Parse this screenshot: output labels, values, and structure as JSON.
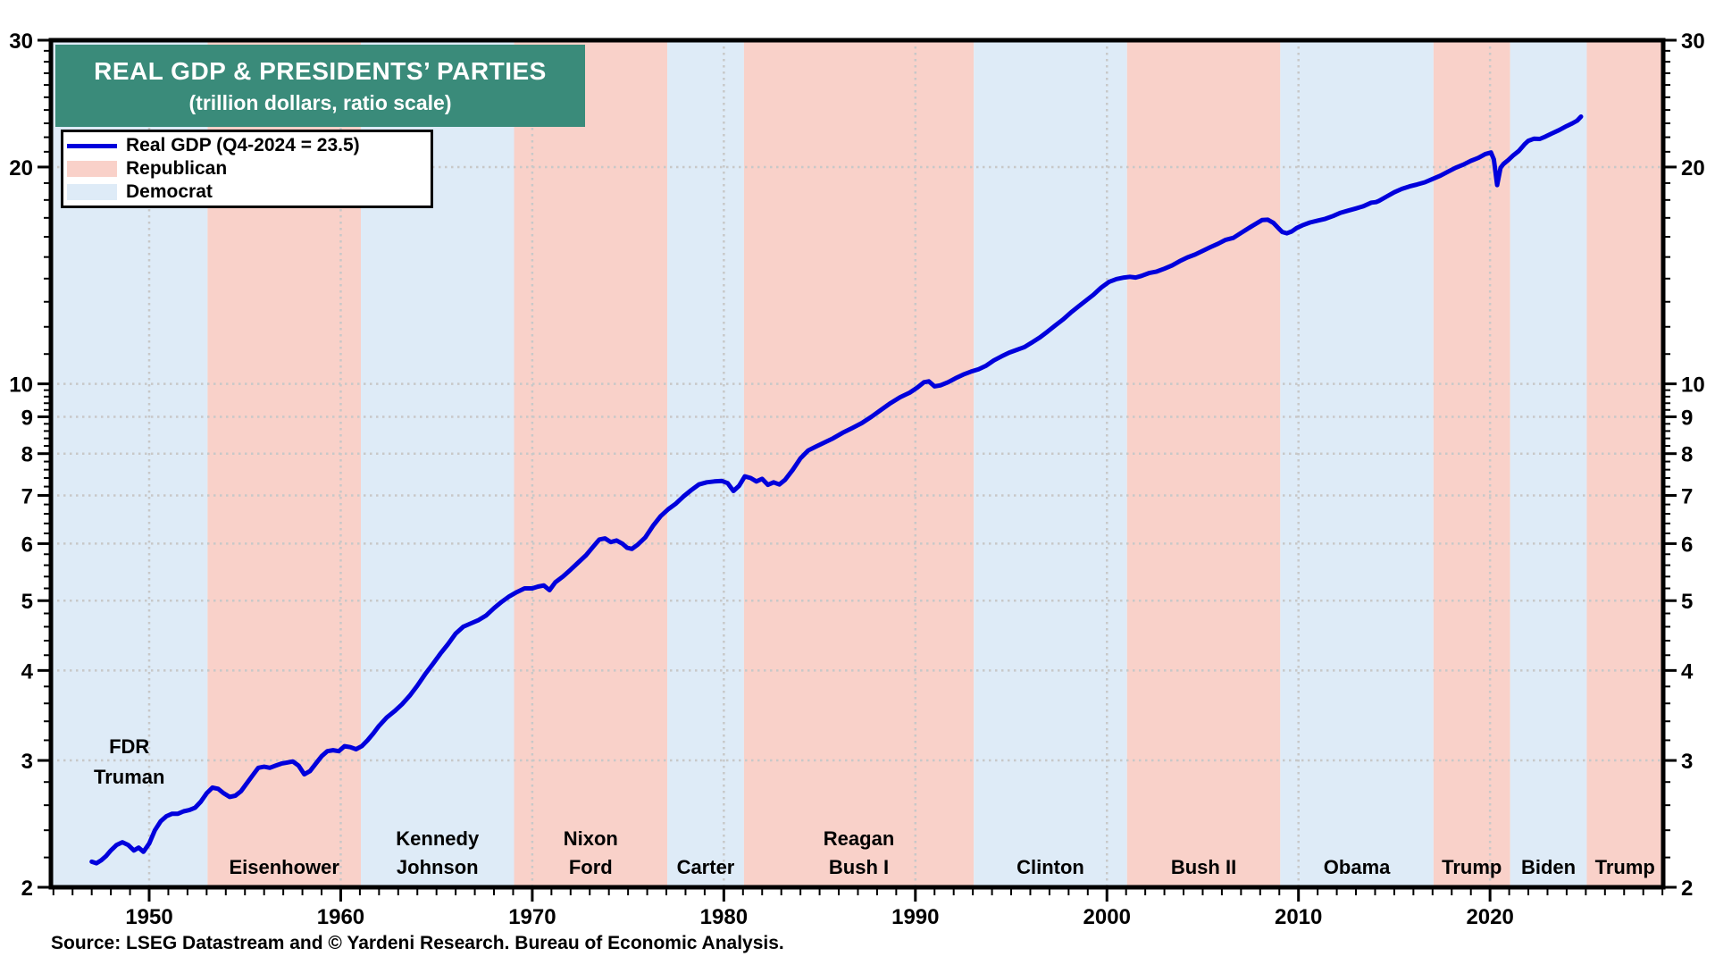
{
  "title": {
    "line1": "REAL GDP & PRESIDENTS’ PARTIES",
    "line2": "(trillion dollars, ratio scale)"
  },
  "legend": {
    "gdp_label": "Real GDP (Q4-2024 = 23.5)",
    "republican_label": "Republican",
    "democrat_label": "Democrat"
  },
  "source": "Source: LSEG Datastream and © Yardeni Research. Bureau of Economic Analysis.",
  "colors": {
    "title_bg": "#3A8B7A",
    "republican": "#F9D1C9",
    "democrat": "#DEEBF7",
    "gdp_line": "#0000DC",
    "grid": "#C8C8C8",
    "axis": "#000000"
  },
  "chart_data": {
    "type": "line",
    "title": "REAL GDP & PRESIDENTS’ PARTIES",
    "subtitle": "(trillion dollars, ratio scale)",
    "y_scale": "log",
    "grid": "dotted",
    "legend_position": "top-left",
    "x_range": [
      1944.87,
      2029.04
    ],
    "y_range": [
      2,
      30
    ],
    "x_ticks": [
      1950,
      1960,
      1970,
      1980,
      1990,
      2000,
      2010,
      2020
    ],
    "y_ticks": [
      2,
      3,
      4,
      5,
      6,
      7,
      8,
      9,
      10,
      20,
      30
    ],
    "party_bands": [
      {
        "president": "FDR / Truman",
        "label_lines": [
          "FDR",
          "Truman"
        ],
        "party": "Democrat",
        "start": 1944.87,
        "end": 1953.05,
        "label_placement": "upper"
      },
      {
        "president": "Eisenhower",
        "label_lines": [
          "Eisenhower"
        ],
        "party": "Republican",
        "start": 1953.05,
        "end": 1961.05
      },
      {
        "president": "Kennedy / Johnson",
        "label_lines": [
          "Kennedy",
          "Johnson"
        ],
        "party": "Democrat",
        "start": 1961.05,
        "end": 1969.05
      },
      {
        "president": "Nixon / Ford",
        "label_lines": [
          "Nixon",
          "Ford"
        ],
        "party": "Republican",
        "start": 1969.05,
        "end": 1977.05
      },
      {
        "president": "Carter",
        "label_lines": [
          "Carter"
        ],
        "party": "Democrat",
        "start": 1977.05,
        "end": 1981.05
      },
      {
        "president": "Reagan / Bush I",
        "label_lines": [
          "Reagan",
          "Bush I"
        ],
        "party": "Republican",
        "start": 1981.05,
        "end": 1993.05
      },
      {
        "president": "Clinton",
        "label_lines": [
          "Clinton"
        ],
        "party": "Democrat",
        "start": 1993.05,
        "end": 2001.05
      },
      {
        "president": "Bush II",
        "label_lines": [
          "Bush II"
        ],
        "party": "Republican",
        "start": 2001.05,
        "end": 2009.05
      },
      {
        "president": "Obama",
        "label_lines": [
          "Obama"
        ],
        "party": "Democrat",
        "start": 2009.05,
        "end": 2017.05
      },
      {
        "president": "Trump",
        "label_lines": [
          "Trump"
        ],
        "party": "Republican",
        "start": 2017.05,
        "end": 2021.05
      },
      {
        "president": "Biden",
        "label_lines": [
          "Biden"
        ],
        "party": "Democrat",
        "start": 2021.05,
        "end": 2025.05
      },
      {
        "president": "Trump",
        "label_lines": [
          "Trump"
        ],
        "party": "Republican",
        "start": 2025.05,
        "end": 2029.04
      }
    ],
    "series": [
      {
        "name": "Real GDP (Q4-2024 = 23.5)",
        "units": "trillion dollars",
        "color": "#0000DC",
        "points": [
          [
            1947.0,
            2.17
          ],
          [
            1947.25,
            2.16
          ],
          [
            1947.5,
            2.18
          ],
          [
            1947.75,
            2.21
          ],
          [
            1948.0,
            2.25
          ],
          [
            1948.3,
            2.29
          ],
          [
            1948.6,
            2.31
          ],
          [
            1948.9,
            2.29
          ],
          [
            1949.2,
            2.25
          ],
          [
            1949.45,
            2.27
          ],
          [
            1949.7,
            2.24
          ],
          [
            1950.0,
            2.3
          ],
          [
            1950.3,
            2.4
          ],
          [
            1950.6,
            2.47
          ],
          [
            1950.9,
            2.51
          ],
          [
            1951.2,
            2.53
          ],
          [
            1951.5,
            2.53
          ],
          [
            1951.8,
            2.55
          ],
          [
            1952.1,
            2.56
          ],
          [
            1952.4,
            2.58
          ],
          [
            1952.7,
            2.63
          ],
          [
            1953.0,
            2.7
          ],
          [
            1953.3,
            2.75
          ],
          [
            1953.6,
            2.74
          ],
          [
            1953.9,
            2.7
          ],
          [
            1954.2,
            2.67
          ],
          [
            1954.5,
            2.68
          ],
          [
            1954.8,
            2.72
          ],
          [
            1955.1,
            2.79
          ],
          [
            1955.4,
            2.86
          ],
          [
            1955.7,
            2.93
          ],
          [
            1956.0,
            2.94
          ],
          [
            1956.3,
            2.93
          ],
          [
            1956.6,
            2.95
          ],
          [
            1956.9,
            2.97
          ],
          [
            1957.2,
            2.98
          ],
          [
            1957.5,
            2.99
          ],
          [
            1957.8,
            2.95
          ],
          [
            1958.1,
            2.87
          ],
          [
            1958.4,
            2.9
          ],
          [
            1958.7,
            2.97
          ],
          [
            1959.0,
            3.04
          ],
          [
            1959.3,
            3.09
          ],
          [
            1959.6,
            3.1
          ],
          [
            1959.9,
            3.09
          ],
          [
            1960.2,
            3.14
          ],
          [
            1960.5,
            3.13
          ],
          [
            1960.8,
            3.11
          ],
          [
            1961.1,
            3.14
          ],
          [
            1961.4,
            3.2
          ],
          [
            1961.7,
            3.27
          ],
          [
            1962.0,
            3.35
          ],
          [
            1962.4,
            3.44
          ],
          [
            1962.8,
            3.51
          ],
          [
            1963.2,
            3.59
          ],
          [
            1963.6,
            3.69
          ],
          [
            1964.0,
            3.81
          ],
          [
            1964.4,
            3.95
          ],
          [
            1964.8,
            4.08
          ],
          [
            1965.2,
            4.22
          ],
          [
            1965.6,
            4.35
          ],
          [
            1966.0,
            4.5
          ],
          [
            1966.4,
            4.6
          ],
          [
            1966.8,
            4.65
          ],
          [
            1967.2,
            4.7
          ],
          [
            1967.6,
            4.77
          ],
          [
            1968.0,
            4.88
          ],
          [
            1968.4,
            4.98
          ],
          [
            1968.8,
            5.07
          ],
          [
            1969.2,
            5.14
          ],
          [
            1969.6,
            5.2
          ],
          [
            1970.0,
            5.2
          ],
          [
            1970.3,
            5.23
          ],
          [
            1970.6,
            5.25
          ],
          [
            1970.9,
            5.17
          ],
          [
            1971.2,
            5.3
          ],
          [
            1971.6,
            5.4
          ],
          [
            1972.0,
            5.52
          ],
          [
            1972.4,
            5.65
          ],
          [
            1972.8,
            5.78
          ],
          [
            1973.2,
            5.95
          ],
          [
            1973.5,
            6.08
          ],
          [
            1973.8,
            6.1
          ],
          [
            1974.1,
            6.03
          ],
          [
            1974.4,
            6.06
          ],
          [
            1974.7,
            6.0
          ],
          [
            1974.95,
            5.92
          ],
          [
            1975.2,
            5.9
          ],
          [
            1975.5,
            5.98
          ],
          [
            1975.9,
            6.12
          ],
          [
            1976.3,
            6.35
          ],
          [
            1976.7,
            6.55
          ],
          [
            1977.1,
            6.7
          ],
          [
            1977.5,
            6.82
          ],
          [
            1977.9,
            6.98
          ],
          [
            1978.3,
            7.12
          ],
          [
            1978.7,
            7.25
          ],
          [
            1979.1,
            7.3
          ],
          [
            1979.5,
            7.32
          ],
          [
            1979.9,
            7.33
          ],
          [
            1980.2,
            7.28
          ],
          [
            1980.5,
            7.1
          ],
          [
            1980.8,
            7.22
          ],
          [
            1981.1,
            7.44
          ],
          [
            1981.4,
            7.4
          ],
          [
            1981.7,
            7.32
          ],
          [
            1982.0,
            7.38
          ],
          [
            1982.3,
            7.24
          ],
          [
            1982.6,
            7.3
          ],
          [
            1982.9,
            7.25
          ],
          [
            1983.2,
            7.36
          ],
          [
            1983.6,
            7.6
          ],
          [
            1984.0,
            7.88
          ],
          [
            1984.4,
            8.08
          ],
          [
            1984.8,
            8.18
          ],
          [
            1985.2,
            8.28
          ],
          [
            1985.7,
            8.4
          ],
          [
            1986.2,
            8.55
          ],
          [
            1986.7,
            8.68
          ],
          [
            1987.2,
            8.82
          ],
          [
            1987.7,
            9.0
          ],
          [
            1988.2,
            9.2
          ],
          [
            1988.7,
            9.4
          ],
          [
            1989.2,
            9.58
          ],
          [
            1989.7,
            9.72
          ],
          [
            1990.1,
            9.88
          ],
          [
            1990.45,
            10.05
          ],
          [
            1990.7,
            10.08
          ],
          [
            1991.0,
            9.92
          ],
          [
            1991.3,
            9.95
          ],
          [
            1991.7,
            10.05
          ],
          [
            1992.1,
            10.18
          ],
          [
            1992.5,
            10.3
          ],
          [
            1992.9,
            10.4
          ],
          [
            1993.3,
            10.48
          ],
          [
            1993.7,
            10.6
          ],
          [
            1994.1,
            10.78
          ],
          [
            1994.5,
            10.92
          ],
          [
            1994.9,
            11.05
          ],
          [
            1995.3,
            11.15
          ],
          [
            1995.7,
            11.25
          ],
          [
            1996.1,
            11.42
          ],
          [
            1996.5,
            11.6
          ],
          [
            1996.9,
            11.82
          ],
          [
            1997.3,
            12.05
          ],
          [
            1997.7,
            12.28
          ],
          [
            1998.1,
            12.55
          ],
          [
            1998.5,
            12.8
          ],
          [
            1998.9,
            13.05
          ],
          [
            1999.3,
            13.3
          ],
          [
            1999.7,
            13.6
          ],
          [
            2000.1,
            13.85
          ],
          [
            2000.5,
            13.98
          ],
          [
            2000.9,
            14.05
          ],
          [
            2001.2,
            14.08
          ],
          [
            2001.5,
            14.05
          ],
          [
            2001.8,
            14.12
          ],
          [
            2002.2,
            14.25
          ],
          [
            2002.6,
            14.32
          ],
          [
            2003.0,
            14.45
          ],
          [
            2003.4,
            14.6
          ],
          [
            2003.8,
            14.8
          ],
          [
            2004.2,
            14.98
          ],
          [
            2004.6,
            15.12
          ],
          [
            2005.0,
            15.3
          ],
          [
            2005.4,
            15.48
          ],
          [
            2005.8,
            15.65
          ],
          [
            2006.2,
            15.85
          ],
          [
            2006.6,
            15.95
          ],
          [
            2007.0,
            16.2
          ],
          [
            2007.4,
            16.45
          ],
          [
            2007.8,
            16.7
          ],
          [
            2008.1,
            16.88
          ],
          [
            2008.4,
            16.9
          ],
          [
            2008.7,
            16.72
          ],
          [
            2008.95,
            16.45
          ],
          [
            2009.15,
            16.25
          ],
          [
            2009.4,
            16.18
          ],
          [
            2009.65,
            16.28
          ],
          [
            2009.9,
            16.45
          ],
          [
            2010.2,
            16.6
          ],
          [
            2010.6,
            16.75
          ],
          [
            2011.0,
            16.85
          ],
          [
            2011.4,
            16.95
          ],
          [
            2011.8,
            17.1
          ],
          [
            2012.2,
            17.28
          ],
          [
            2012.6,
            17.4
          ],
          [
            2013.0,
            17.52
          ],
          [
            2013.4,
            17.65
          ],
          [
            2013.8,
            17.85
          ],
          [
            2014.05,
            17.88
          ],
          [
            2014.2,
            17.95
          ],
          [
            2014.6,
            18.2
          ],
          [
            2015.0,
            18.45
          ],
          [
            2015.4,
            18.65
          ],
          [
            2015.8,
            18.8
          ],
          [
            2016.2,
            18.92
          ],
          [
            2016.6,
            19.05
          ],
          [
            2017.0,
            19.25
          ],
          [
            2017.4,
            19.45
          ],
          [
            2017.8,
            19.7
          ],
          [
            2018.2,
            19.95
          ],
          [
            2018.6,
            20.15
          ],
          [
            2019.0,
            20.4
          ],
          [
            2019.4,
            20.6
          ],
          [
            2019.75,
            20.85
          ],
          [
            2020.05,
            20.95
          ],
          [
            2020.2,
            20.5
          ],
          [
            2020.37,
            18.88
          ],
          [
            2020.55,
            19.95
          ],
          [
            2020.7,
            20.2
          ],
          [
            2020.95,
            20.45
          ],
          [
            2021.2,
            20.75
          ],
          [
            2021.5,
            21.05
          ],
          [
            2021.8,
            21.5
          ],
          [
            2022.0,
            21.75
          ],
          [
            2022.3,
            21.9
          ],
          [
            2022.6,
            21.88
          ],
          [
            2022.9,
            22.05
          ],
          [
            2023.2,
            22.25
          ],
          [
            2023.6,
            22.5
          ],
          [
            2024.0,
            22.8
          ],
          [
            2024.3,
            23.0
          ],
          [
            2024.55,
            23.2
          ],
          [
            2024.75,
            23.5
          ]
        ]
      }
    ]
  }
}
